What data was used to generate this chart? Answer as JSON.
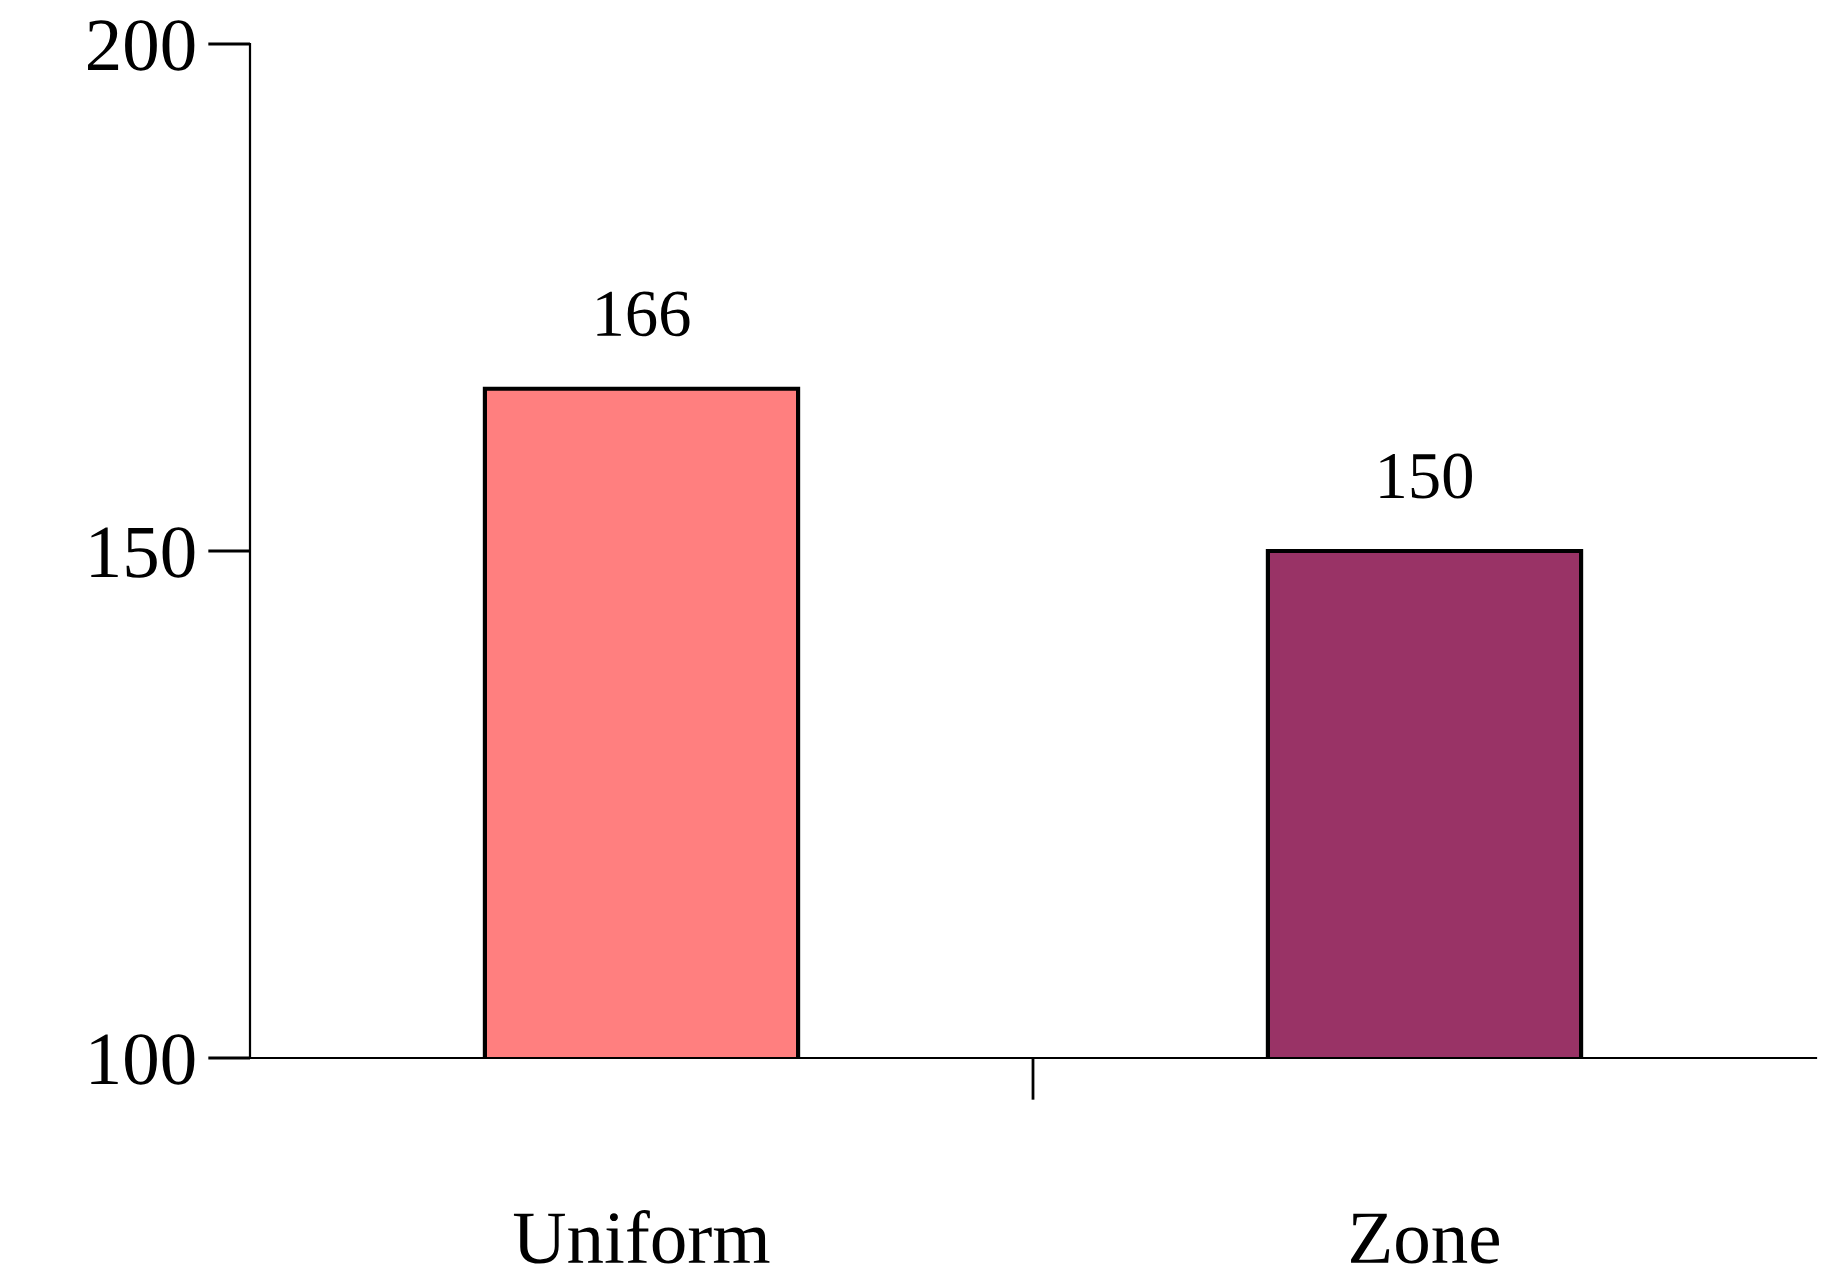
{
  "chart_data": {
    "type": "bar",
    "categories": [
      "Uniform",
      "Zone"
    ],
    "values": [
      166,
      150
    ],
    "colors": [
      "#ff7f7f",
      "#993366"
    ],
    "ylim": [
      100,
      200
    ],
    "yticks": [
      100,
      150,
      200
    ],
    "data_labels": true,
    "grid": false,
    "legend": false
  }
}
